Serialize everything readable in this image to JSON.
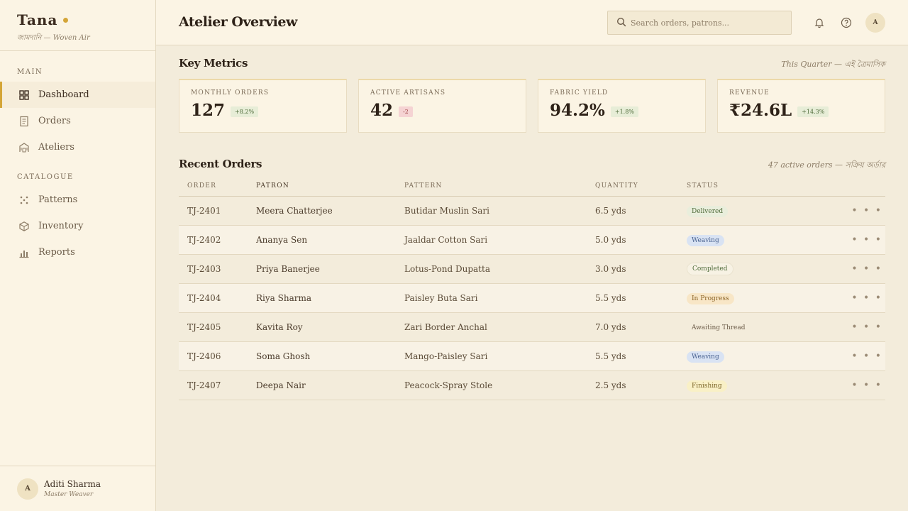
{
  "brand": {
    "name": "Tana",
    "subtitle": "জামদানি — Woven Air",
    "accent": "#d4a537"
  },
  "sidebar": {
    "sections": [
      {
        "label": "MAIN",
        "items": [
          {
            "label": "Dashboard",
            "icon": "grid-icon",
            "active": true
          },
          {
            "label": "Orders",
            "icon": "document-icon"
          },
          {
            "label": "Ateliers",
            "icon": "building-icon"
          }
        ]
      },
      {
        "label": "CATALOGUE",
        "items": [
          {
            "label": "Patterns",
            "icon": "dots-pattern-icon"
          },
          {
            "label": "Inventory",
            "icon": "box-icon"
          },
          {
            "label": "Reports",
            "icon": "bar-chart-icon"
          }
        ]
      }
    ],
    "user": {
      "initial": "A",
      "name": "Aditi Sharma",
      "role": "Master Weaver"
    }
  },
  "header": {
    "title": "Atelier Overview",
    "search_placeholder": "Search orders, patrons...",
    "avatar_initial": "A"
  },
  "metrics": {
    "title": "Key Metrics",
    "note": "This Quarter — এই ত্রৈমাসিক",
    "cards": [
      {
        "label": "MONTHLY ORDERS",
        "value": "127",
        "delta": "+8.2%",
        "trend": "up"
      },
      {
        "label": "ACTIVE ARTISANS",
        "value": "42",
        "delta": "-2",
        "trend": "down"
      },
      {
        "label": "FABRIC YIELD",
        "value": "94.2%",
        "delta": "+1.8%",
        "trend": "up"
      },
      {
        "label": "REVENUE",
        "value": "₹24.6L",
        "delta": "+14.3%",
        "trend": "up"
      }
    ]
  },
  "orders": {
    "title": "Recent Orders",
    "note": "47 active orders — সক্রিয় অর্ডার",
    "columns": [
      "ORDER",
      "PATRON",
      "PATTERN",
      "QUANTITY",
      "STATUS"
    ],
    "rows": [
      {
        "order": "TJ-2401",
        "patron": "Meera Chatterjee",
        "pattern": "Butidar Muslin Sari",
        "quantity": "6.5 yds",
        "status": "Delivered",
        "status_class": "b-delivered"
      },
      {
        "order": "TJ-2402",
        "patron": "Ananya Sen",
        "pattern": "Jaaldar Cotton Sari",
        "quantity": "5.0 yds",
        "status": "Weaving",
        "status_class": "b-weaving"
      },
      {
        "order": "TJ-2403",
        "patron": "Priya Banerjee",
        "pattern": "Lotus-Pond Dupatta",
        "quantity": "3.0 yds",
        "status": "Completed",
        "status_class": "b-completed"
      },
      {
        "order": "TJ-2404",
        "patron": "Riya Sharma",
        "pattern": "Paisley Buta Sari",
        "quantity": "5.5 yds",
        "status": "In Progress",
        "status_class": "b-progress"
      },
      {
        "order": "TJ-2405",
        "patron": "Kavita Roy",
        "pattern": "Zari Border Anchal",
        "quantity": "7.0 yds",
        "status": "Awaiting Thread",
        "status_class": "b-awaiting"
      },
      {
        "order": "TJ-2406",
        "patron": "Soma Ghosh",
        "pattern": "Mango-Paisley Sari",
        "quantity": "5.5 yds",
        "status": "Weaving",
        "status_class": "b-weaving"
      },
      {
        "order": "TJ-2407",
        "patron": "Deepa Nair",
        "pattern": "Peacock-Spray Stole",
        "quantity": "2.5 yds",
        "status": "Finishing",
        "status_class": "b-finishing"
      }
    ],
    "row_menu": "• • •"
  }
}
